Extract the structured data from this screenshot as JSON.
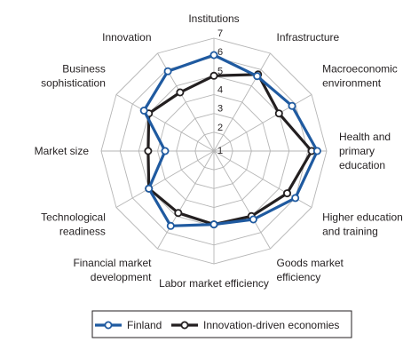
{
  "chart_data": {
    "type": "radar",
    "title": "",
    "axes": [
      [
        "Institutions"
      ],
      [
        "Infrastructure"
      ],
      [
        "Macroeconomic",
        "environment"
      ],
      [
        "Health and",
        "primary",
        "education"
      ],
      [
        "Higher education",
        "and training"
      ],
      [
        "Goods market",
        "efficiency"
      ],
      [
        "Labor market efficiency"
      ],
      [
        "Financial market",
        "development"
      ],
      [
        "Technological",
        "readiness"
      ],
      [
        "Market size"
      ],
      [
        "Business",
        "sophistication"
      ],
      [
        "Innovation"
      ]
    ],
    "rlim": [
      1,
      7
    ],
    "ticks": [
      "1",
      "2",
      "3",
      "4",
      "5",
      "6",
      "7"
    ],
    "grid": true,
    "legend_position": "bottom",
    "series": [
      {
        "name": "Finland",
        "color": "#1f5aa0",
        "values": [
          6.1,
          5.6,
          5.8,
          6.5,
          6.0,
          5.2,
          4.9,
          5.6,
          5.0,
          3.6,
          5.3,
          5.9
        ]
      },
      {
        "name": "Innovation-driven economies",
        "color": "#231f20",
        "values": [
          5.0,
          5.7,
          5.0,
          6.2,
          5.5,
          5.0,
          4.9,
          4.8,
          5.0,
          4.5,
          5.0,
          4.6
        ]
      }
    ]
  }
}
